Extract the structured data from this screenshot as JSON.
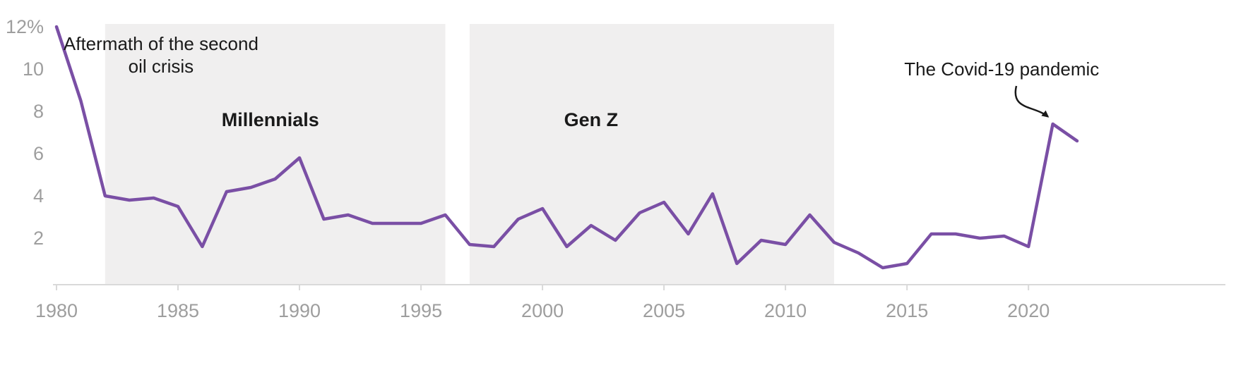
{
  "chart_data": {
    "type": "line",
    "title": "",
    "x": [
      1980,
      1981,
      1982,
      1983,
      1984,
      1985,
      1986,
      1987,
      1988,
      1989,
      1990,
      1991,
      1992,
      1993,
      1994,
      1995,
      1996,
      1997,
      1998,
      1999,
      2000,
      2001,
      2002,
      2003,
      2004,
      2005,
      2006,
      2007,
      2008,
      2009,
      2010,
      2011,
      2012,
      2013,
      2014,
      2015,
      2016,
      2017,
      2018,
      2019,
      2020,
      2021,
      2022
    ],
    "series": [
      {
        "values": [
          12.0,
          8.5,
          4.0,
          3.8,
          3.9,
          3.5,
          1.6,
          4.2,
          4.4,
          4.8,
          5.8,
          2.9,
          3.1,
          2.7,
          2.7,
          2.7,
          3.1,
          1.7,
          1.6,
          2.9,
          3.4,
          1.6,
          2.6,
          1.9,
          3.2,
          3.7,
          2.2,
          4.1,
          0.8,
          1.9,
          1.7,
          3.1,
          1.8,
          1.3,
          0.6,
          0.8,
          2.2,
          2.2,
          2.0,
          2.1,
          1.6,
          7.4,
          6.6
        ]
      }
    ],
    "xlim": [
      1980,
      2022
    ],
    "ylim": [
      0,
      12
    ],
    "grid": false,
    "legend": false,
    "y_ticks": [
      {
        "value": 12,
        "label": "12%"
      },
      {
        "value": 10,
        "label": "10"
      },
      {
        "value": 8,
        "label": "8"
      },
      {
        "value": 6,
        "label": "6"
      },
      {
        "value": 4,
        "label": "4"
      },
      {
        "value": 2,
        "label": "2"
      }
    ],
    "x_ticks": [
      {
        "value": 1980,
        "label": "1980"
      },
      {
        "value": 1985,
        "label": "1985"
      },
      {
        "value": 1990,
        "label": "1990"
      },
      {
        "value": 1995,
        "label": "1995"
      },
      {
        "value": 2000,
        "label": "2000"
      },
      {
        "value": 2005,
        "label": "2005"
      },
      {
        "value": 2010,
        "label": "2010"
      },
      {
        "value": 2015,
        "label": "2015"
      },
      {
        "value": 2020,
        "label": "2020"
      }
    ],
    "regions": [
      {
        "label": "Millennials",
        "start_year": 1982,
        "end_year": 1996,
        "label_year": 1988.8,
        "label_value": 7.3
      },
      {
        "label": "Gen Z",
        "start_year": 1997,
        "end_year": 2012,
        "label_year": 2002.0,
        "label_value": 7.3
      }
    ],
    "annotations": [
      {
        "id": "oil-crisis",
        "lines": [
          "Aftermath of the second",
          "oil crisis"
        ],
        "year": 1984.3,
        "value": 10.9
      },
      {
        "id": "covid",
        "lines": [
          "The Covid-19 pandemic"
        ],
        "year": 2018.9,
        "value": 9.7,
        "arrow": {
          "from_year": 2019.5,
          "from_value": 9.2,
          "to_year": 2020.8,
          "to_value": 7.75
        }
      }
    ]
  },
  "colors": {
    "background": "#ffffff",
    "line": "#7a4fa5",
    "region_fill": "#f0efef",
    "axis": "#d9d9d9",
    "tick_label": "#9e9e9e",
    "annotation_text": "#1a1a1a"
  }
}
